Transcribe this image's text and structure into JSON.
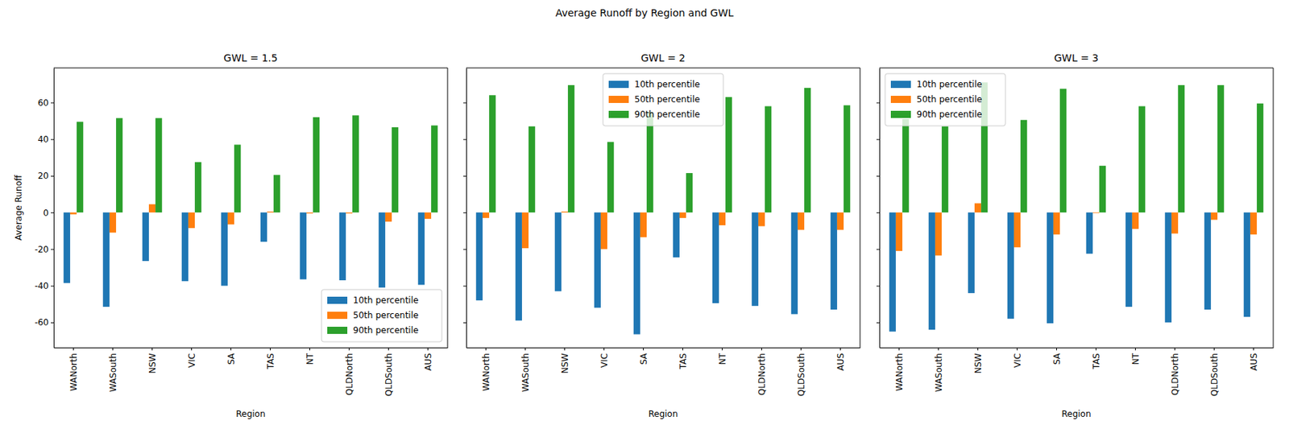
{
  "title": "Average Runoff by Region and GWL",
  "chart_data": [
    {
      "type": "bar",
      "title": "GWL = 1.5",
      "x_label": "Region",
      "y_label": "Average Runoff",
      "categories": [
        "WANorth",
        "WASouth",
        "NSW",
        "VIC",
        "SA",
        "TAS",
        "NT",
        "QLDNorth",
        "QLDSouth",
        "AUS"
      ],
      "series": [
        {
          "name": "10th percentile",
          "color": "#1f77b4",
          "values": [
            -38.5,
            -51.5,
            -26.5,
            -37.5,
            -40,
            -16,
            -36.5,
            -37,
            -41,
            -39.5
          ]
        },
        {
          "name": "50th percentile",
          "color": "#ff7f0e",
          "values": [
            -1,
            -11,
            4.5,
            -8.5,
            -6.5,
            0.5,
            -0.5,
            -0.5,
            -5,
            -3.5
          ]
        },
        {
          "name": "90th percentile",
          "color": "#2ca02c",
          "values": [
            49.5,
            51.5,
            51.5,
            27.5,
            37,
            20.5,
            52,
            53,
            46.5,
            47.5
          ]
        }
      ],
      "ylim": [
        -73.7,
        78.9
      ],
      "yticks": [
        -60,
        -40,
        -20,
        0,
        20,
        40,
        60
      ],
      "legend": "lower right"
    },
    {
      "type": "bar",
      "title": "GWL = 2",
      "x_label": "Region",
      "categories": [
        "WANorth",
        "WASouth",
        "NSW",
        "VIC",
        "SA",
        "TAS",
        "NT",
        "QLDNorth",
        "QLDSouth",
        "AUS"
      ],
      "series": [
        {
          "name": "10th percentile",
          "color": "#1f77b4",
          "values": [
            -48,
            -59,
            -43,
            -52,
            -66.5,
            -24.5,
            -49.5,
            -51,
            -55.5,
            -53
          ]
        },
        {
          "name": "50th percentile",
          "color": "#ff7f0e",
          "values": [
            -3,
            -19.5,
            0.5,
            -20,
            -13.5,
            -3,
            -7,
            -7.5,
            -9.5,
            -9.5
          ]
        },
        {
          "name": "90th percentile",
          "color": "#2ca02c",
          "values": [
            64,
            47,
            69.5,
            38.5,
            55,
            21.5,
            63,
            58,
            68,
            58.5
          ]
        }
      ],
      "ylim": [
        -73.7,
        78.9
      ],
      "yticks": [
        -60,
        -40,
        -20,
        0,
        20,
        40,
        60
      ],
      "legend": "upper center",
      "tick_labels": "x"
    },
    {
      "type": "bar",
      "title": "GWL = 3",
      "x_label": "Region",
      "categories": [
        "WANorth",
        "WASouth",
        "NSW",
        "VIC",
        "SA",
        "TAS",
        "NT",
        "QLDNorth",
        "QLDSouth",
        "AUS"
      ],
      "series": [
        {
          "name": "10th percentile",
          "color": "#1f77b4",
          "values": [
            -65,
            -64,
            -44,
            -58,
            -60.5,
            -22.5,
            -51.5,
            -60,
            -53,
            -57
          ]
        },
        {
          "name": "50th percentile",
          "color": "#ff7f0e",
          "values": [
            -21,
            -23.5,
            5,
            -19,
            -12,
            -0.3,
            -9,
            -11.5,
            -4,
            -12
          ]
        },
        {
          "name": "90th percentile",
          "color": "#2ca02c",
          "values": [
            51,
            47,
            71,
            50.5,
            67.5,
            25.5,
            58,
            69.5,
            69.5,
            59.5
          ]
        }
      ],
      "ylim": [
        -73.7,
        78.9
      ],
      "yticks": [
        -60,
        -40,
        -20,
        0,
        20,
        40,
        60
      ],
      "legend": "upper left",
      "tick_labels": "x"
    }
  ]
}
